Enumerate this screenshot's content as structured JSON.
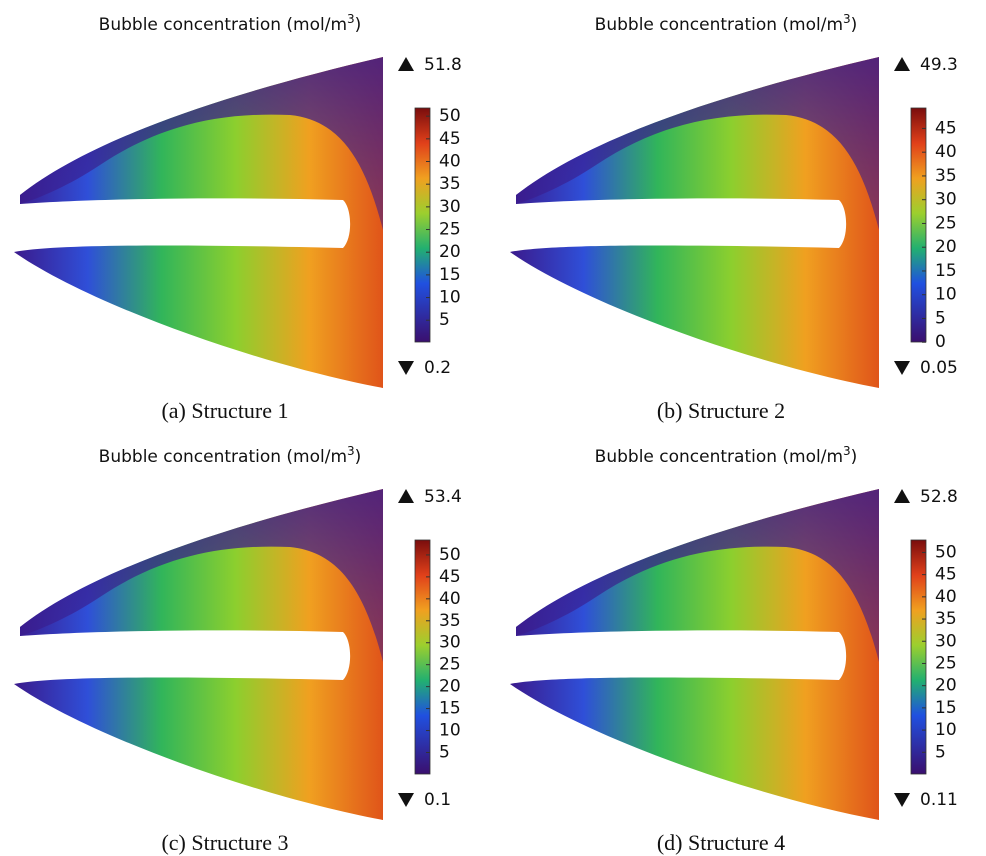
{
  "panels": [
    {
      "title": "Bubble concentration (mol/m",
      "title_sup": "3",
      "title_end": ")",
      "max": 51.8,
      "min": 0.2,
      "ticks": [
        50,
        45,
        40,
        35,
        30,
        25,
        20,
        15,
        10,
        5
      ],
      "caption": "(a) Structure 1"
    },
    {
      "title": "Bubble concentration (mol/m",
      "title_sup": "3",
      "title_end": ")",
      "max": 49.3,
      "min": 0.05,
      "ticks": [
        45,
        40,
        35,
        30,
        25,
        20,
        15,
        10,
        5,
        0
      ],
      "caption": "(b) Structure 2"
    },
    {
      "title": "Bubble concentration (mol/m",
      "title_sup": "3",
      "title_end": ")",
      "max": 53.4,
      "min": 0.1,
      "ticks": [
        50,
        45,
        40,
        35,
        30,
        25,
        20,
        15,
        10,
        5
      ],
      "caption": "(c) Structure 3"
    },
    {
      "title": "Bubble concentration (mol/m",
      "title_sup": "3",
      "title_end": ")",
      "max": 52.8,
      "min": 0.11,
      "ticks": [
        50,
        45,
        40,
        35,
        30,
        25,
        20,
        15,
        10,
        5
      ],
      "caption": "(d) Structure 4"
    }
  ]
}
